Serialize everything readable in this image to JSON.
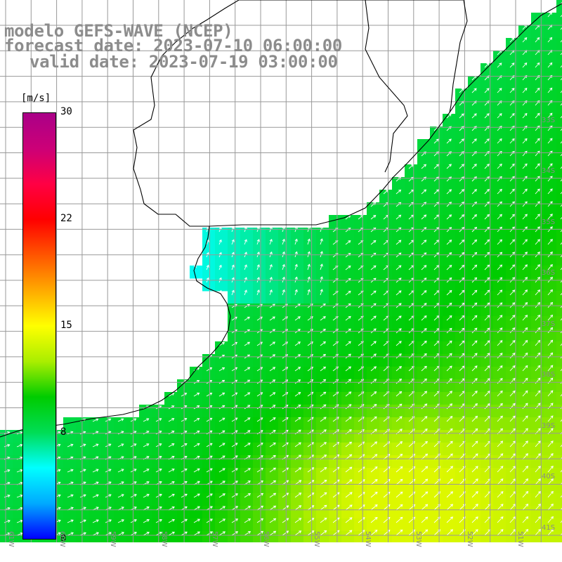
{
  "title": {
    "model": "modelo GEFS-WAVE (NCEP)",
    "forecast": "forecast date: 2023-07-10 06:00:00",
    "valid": "valid date: 2023-07-19 03:00:00"
  },
  "colorbar": {
    "unit": "[m/s]",
    "ticks": [
      "30",
      "22",
      "15",
      "8",
      "0"
    ],
    "tick_values": [
      30,
      22,
      15,
      8,
      0
    ],
    "min": 0,
    "max": 30,
    "colors": [
      "#0000ff",
      "#00aaff",
      "#00ffff",
      "#00dd55",
      "#00cc00",
      "#aaee00",
      "#ffff00",
      "#ffaa00",
      "#ff5500",
      "#ff0000",
      "#ff0044",
      "#cc0077",
      "#aa0088"
    ]
  },
  "map": {
    "lat_labels": [
      "33S",
      "34S",
      "35S",
      "36S",
      "37S",
      "38S",
      "39S",
      "40S",
      "41S"
    ],
    "lon_labels": [
      "61W",
      "60W",
      "59W",
      "58W",
      "57W",
      "56W",
      "55W",
      "54W",
      "53W",
      "52W",
      "51W"
    ],
    "land_color": "#ffffff",
    "grid_color": "#999999"
  }
}
